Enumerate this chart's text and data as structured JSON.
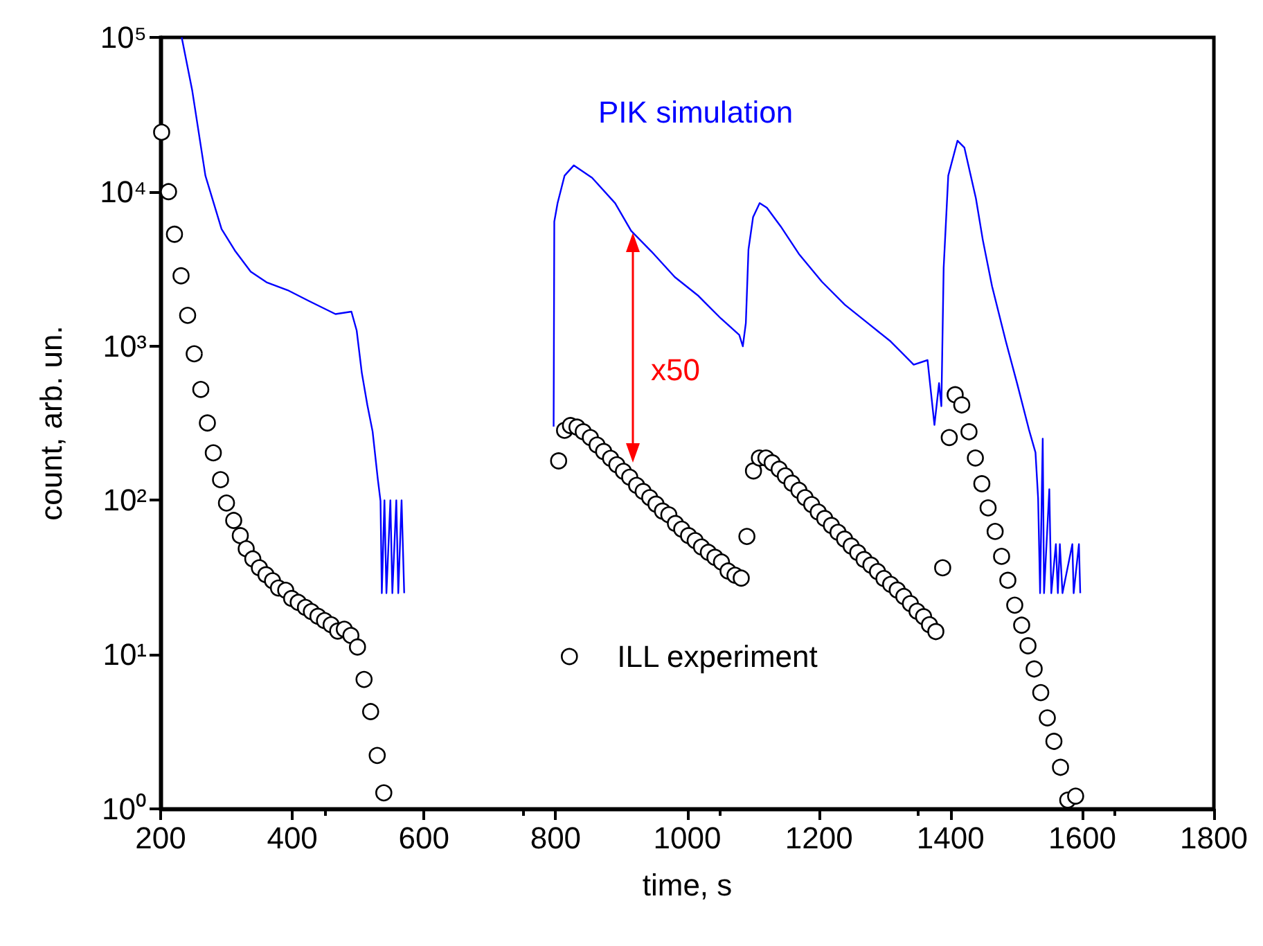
{
  "chart_data": {
    "type": "scatter",
    "xlabel": "time, s",
    "ylabel": "count, arb. un.",
    "log": "y",
    "xlim": [
      200,
      1800
    ],
    "xticks": [
      200,
      400,
      600,
      800,
      1000,
      1200,
      1400,
      1600,
      1800
    ],
    "ylim": [
      1,
      100000
    ],
    "yticks": [
      {
        "value": 1,
        "label": "10⁰"
      },
      {
        "value": 10,
        "label": "10¹"
      },
      {
        "value": 100,
        "label": "10²"
      },
      {
        "value": 1000,
        "label": "10³"
      },
      {
        "value": 10000,
        "label": "10⁴"
      },
      {
        "value": 100000,
        "label": "10⁵"
      }
    ],
    "grid": false,
    "legend": "bottom",
    "marker": "circle",
    "annotations": [
      "x50"
    ],
    "series": [
      {
        "name": "PIK simulation",
        "type": "line",
        "color": "#0000ff",
        "marker": "none",
        "line_style": "solid",
        "x": [
          232,
          248,
          268,
          292.5,
          312.7,
          336.8,
          360.8,
          393,
          425,
          465.6,
          489.8,
          497.8,
          505.6,
          514,
          522,
          530,
          534,
          536,
          540,
          543,
          549,
          552,
          558,
          561,
          566,
          570,
          680,
          797,
          798,
          803,
          813.6,
          827.6,
          855.5,
          890.4,
          914.8,
          946,
          981,
          1016,
          1051,
          1079,
          1084.4,
          1089,
          1093,
          1100,
          1110,
          1121,
          1141.8,
          1169.6,
          1204.5,
          1239.5,
          1274,
          1309,
          1344,
          1365,
          1375.5,
          1382.5,
          1386,
          1389.5,
          1396.5,
          1410.5,
          1421,
          1438.5,
          1449,
          1463,
          1484,
          1501,
          1519,
          1529,
          1533,
          1536,
          1540,
          1542,
          1550,
          1553,
          1560,
          1563,
          1566,
          1570,
          1585,
          1587,
          1595,
          1597
        ],
        "values": [
          100000,
          45200,
          12700,
          5730,
          4160,
          3030,
          2590,
          2300,
          1960,
          1610,
          1670,
          1260,
          670,
          415,
          279,
          136,
          99,
          25,
          100,
          25,
          100,
          25,
          100,
          25,
          100,
          25,
          null,
          300,
          6400,
          8430,
          12700,
          14800,
          12300,
          8430,
          5570,
          4080,
          2800,
          2130,
          1510,
          1180,
          996,
          1410,
          4230,
          6850,
          8430,
          7870,
          5970,
          3950,
          2610,
          1850,
          1410,
          1070,
          757,
          810,
          308,
          574,
          407,
          3210,
          12700,
          21400,
          19300,
          9040,
          4860,
          2440,
          1070,
          574,
          288,
          204,
          103,
          25,
          251,
          25,
          118,
          25,
          52,
          25,
          52,
          25,
          52,
          25,
          52,
          25
        ]
      },
      {
        "name": "ILL experiment",
        "color": "#000000",
        "x": [
          201.5,
          212,
          221,
          231,
          241,
          251,
          261,
          271,
          280,
          291,
          300,
          311,
          321,
          330,
          340,
          350,
          360,
          370,
          379,
          390,
          399,
          409,
          420,
          429,
          439,
          449,
          459,
          469,
          479,
          489,
          499,
          509,
          519,
          529,
          539,
          804.6,
          813.6,
          822.6,
          832.5,
          842,
          852.8,
          863,
          873,
          883.5,
          893,
          903,
          912.6,
          923,
          933,
          943,
          952.5,
          962.4,
          972,
          982,
          991.6,
          1002,
          1012,
          1021.6,
          1032,
          1042,
          1052,
          1062,
          1072.5,
          1082,
          1090.6,
          1100.6,
          1109.6,
          1119.5,
          1129,
          1139.6,
          1149,
          1159,
          1169.6,
          1179,
          1189,
          1199,
          1208.8,
          1219,
          1229,
          1239,
          1249,
          1259,
          1268.6,
          1279,
          1289,
          1298.8,
          1309,
          1319,
          1329,
          1339,
          1349,
          1359,
          1368,
          1377.6,
          1388,
          1398,
          1407,
          1417,
          1428,
          1437.7,
          1447.5,
          1457,
          1467.7,
          1477.5,
          1487,
          1497.5,
          1508,
          1517.6,
          1527,
          1537,
          1547,
          1557,
          1567,
          1578,
          1590
        ],
        "values": [
          24300,
          10000,
          5300,
          2850,
          1580,
          890,
          523,
          317,
          203,
          136,
          96,
          74,
          59,
          48.5,
          41.7,
          36.5,
          32.9,
          30.1,
          27,
          26.1,
          23.1,
          21.8,
          20.2,
          19,
          17.7,
          16.6,
          15.6,
          14.2,
          14.6,
          13.3,
          11.2,
          6.9,
          4.27,
          2.22,
          1.27,
          180,
          284,
          305,
          298,
          278,
          255,
          228,
          207,
          187,
          170,
          154,
          141,
          125,
          114,
          104,
          94.4,
          85.1,
          80.5,
          70.7,
          65,
          59,
          54.8,
          49.8,
          46,
          42.7,
          39.8,
          34.8,
          32.7,
          31.3,
          58.3,
          155,
          188,
          188,
          175,
          159,
          144,
          129,
          116,
          104,
          93.8,
          83.9,
          76.2,
          68.7,
          62,
          56,
          50.5,
          45.8,
          41.3,
          38,
          34.5,
          31.1,
          28.5,
          26.2,
          23.8,
          21.4,
          19.1,
          17.6,
          15.6,
          14.1,
          36.5,
          255,
          483,
          415,
          278,
          188,
          128,
          89.3,
          62.8,
          43.3,
          30.3,
          20.9,
          15.5,
          11.4,
          8.07,
          5.67,
          3.89,
          2.74,
          1.86,
          1.14,
          1.21
        ]
      }
    ]
  }
}
